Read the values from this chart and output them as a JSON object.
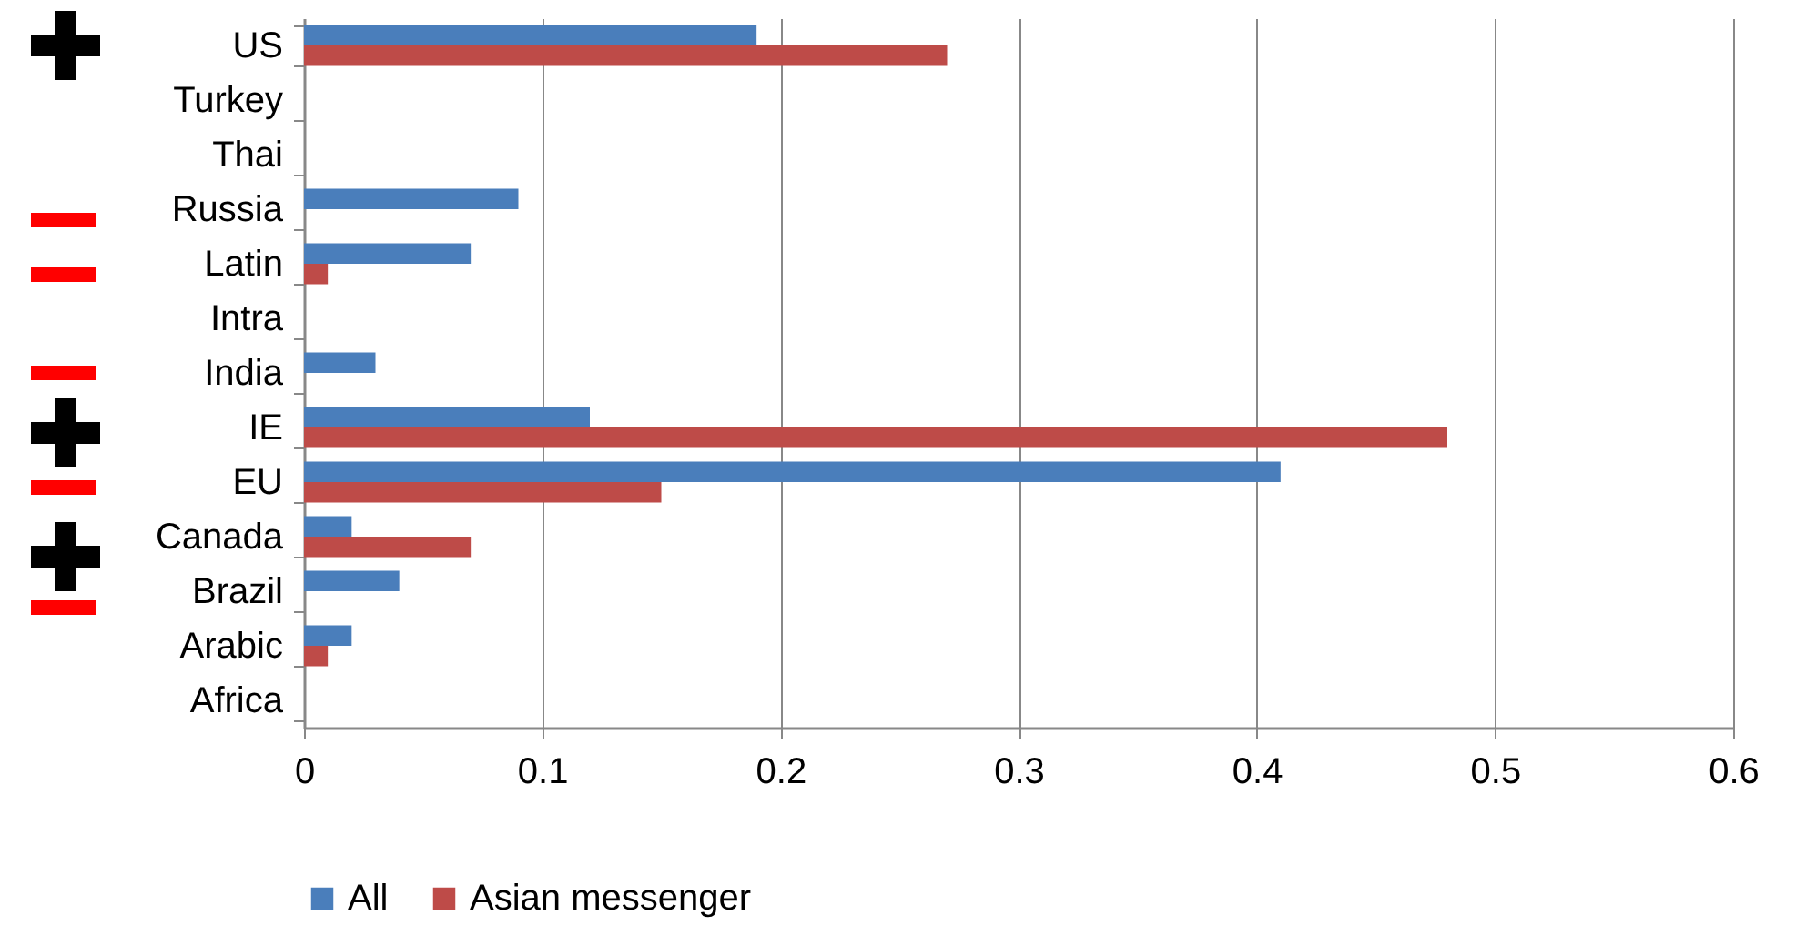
{
  "chart_data": {
    "type": "bar",
    "orientation": "horizontal",
    "categories": [
      "US",
      "Turkey",
      "Thai",
      "Russia",
      "Latin",
      "Intra",
      "India",
      "IE",
      "EU",
      "Canada",
      "Brazil",
      "Arabic",
      "Africa"
    ],
    "series": [
      {
        "name": "All",
        "color": "#4a7ebb",
        "values": [
          0.19,
          null,
          null,
          0.09,
          0.07,
          null,
          0.03,
          0.12,
          0.41,
          0.02,
          0.04,
          0.02,
          null
        ]
      },
      {
        "name": "Asian messenger",
        "color": "#be4b48",
        "values": [
          0.27,
          null,
          null,
          null,
          0.01,
          null,
          null,
          0.48,
          0.15,
          0.07,
          null,
          0.01,
          null
        ]
      }
    ],
    "xlim": [
      0,
      0.6
    ],
    "xticks": [
      0,
      0.1,
      0.2,
      0.3,
      0.4,
      0.5,
      0.6
    ],
    "grid": "x",
    "legend": "bottom"
  }
}
